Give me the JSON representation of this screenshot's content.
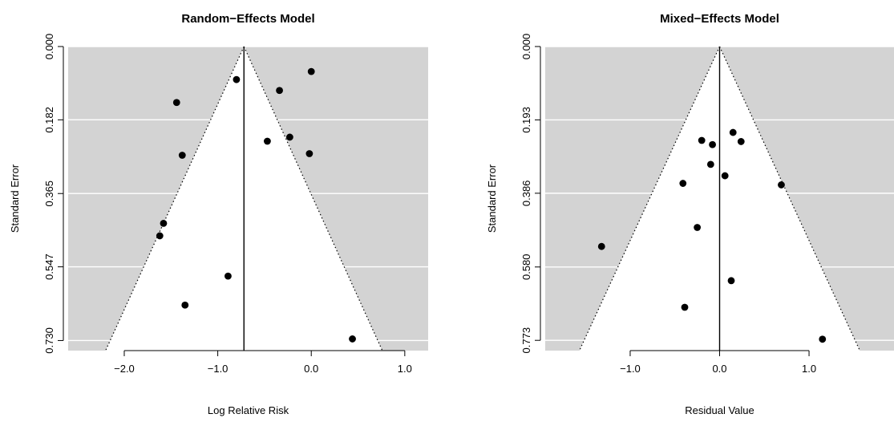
{
  "chart_data": [
    {
      "type": "scatter",
      "title": "Random−Effects Model",
      "xlabel": "Log Relative Risk",
      "ylabel": "Standard Error",
      "xlim": [
        -2.6,
        1.25
      ],
      "ylim": [
        0.0,
        0.755
      ],
      "y_reversed": true,
      "background": "#d3d3d3",
      "funnel_center": -0.72,
      "grid_values": [
        0.0,
        0.182,
        0.365,
        0.547,
        0.73
      ],
      "x_ticks": [
        -2.0,
        -1.0,
        0.0,
        1.0
      ],
      "x_tick_labels": [
        "−2.0",
        "−1.0",
        "0.0",
        "1.0"
      ],
      "y_ticks": [
        0.0,
        0.182,
        0.365,
        0.547,
        0.73
      ],
      "y_tick_labels": [
        "0.000",
        "0.182",
        "0.365",
        "0.547",
        "0.730"
      ],
      "points": [
        {
          "x": 0.0,
          "y": 0.062
        },
        {
          "x": -0.8,
          "y": 0.082
        },
        {
          "x": -0.34,
          "y": 0.109
        },
        {
          "x": -1.44,
          "y": 0.139
        },
        {
          "x": -0.23,
          "y": 0.225
        },
        {
          "x": -0.47,
          "y": 0.235
        },
        {
          "x": -0.02,
          "y": 0.266
        },
        {
          "x": -1.38,
          "y": 0.27
        },
        {
          "x": -1.58,
          "y": 0.439
        },
        {
          "x": -1.62,
          "y": 0.47
        },
        {
          "x": -0.89,
          "y": 0.57
        },
        {
          "x": -1.35,
          "y": 0.642
        },
        {
          "x": 0.44,
          "y": 0.726
        }
      ]
    },
    {
      "type": "scatter",
      "title": "Mixed−Effects Model",
      "xlabel": "Residual Value",
      "ylabel": "Standard Error",
      "xlim": [
        -1.95,
        1.95
      ],
      "ylim": [
        0.0,
        0.8
      ],
      "y_reversed": true,
      "background": "#d3d3d3",
      "funnel_center": 0.0,
      "grid_values": [
        0.0,
        0.193,
        0.386,
        0.58,
        0.773
      ],
      "x_ticks": [
        -1.0,
        0.0,
        1.0
      ],
      "x_tick_labels": [
        "−1.0",
        "0.0",
        "1.0"
      ],
      "y_ticks": [
        0.0,
        0.193,
        0.386,
        0.58,
        0.773
      ],
      "y_tick_labels": [
        "0.000",
        "0.193",
        "0.386",
        "0.580",
        "0.773"
      ],
      "points": [
        {
          "x": 0.15,
          "y": 0.226
        },
        {
          "x": -0.2,
          "y": 0.247
        },
        {
          "x": -0.08,
          "y": 0.258
        },
        {
          "x": 0.24,
          "y": 0.25
        },
        {
          "x": -0.1,
          "y": 0.31
        },
        {
          "x": 0.06,
          "y": 0.34
        },
        {
          "x": -0.41,
          "y": 0.36
        },
        {
          "x": 0.69,
          "y": 0.364
        },
        {
          "x": -0.25,
          "y": 0.476
        },
        {
          "x": -1.32,
          "y": 0.526
        },
        {
          "x": 0.13,
          "y": 0.616
        },
        {
          "x": -0.39,
          "y": 0.686
        },
        {
          "x": 1.15,
          "y": 0.77
        }
      ]
    }
  ]
}
